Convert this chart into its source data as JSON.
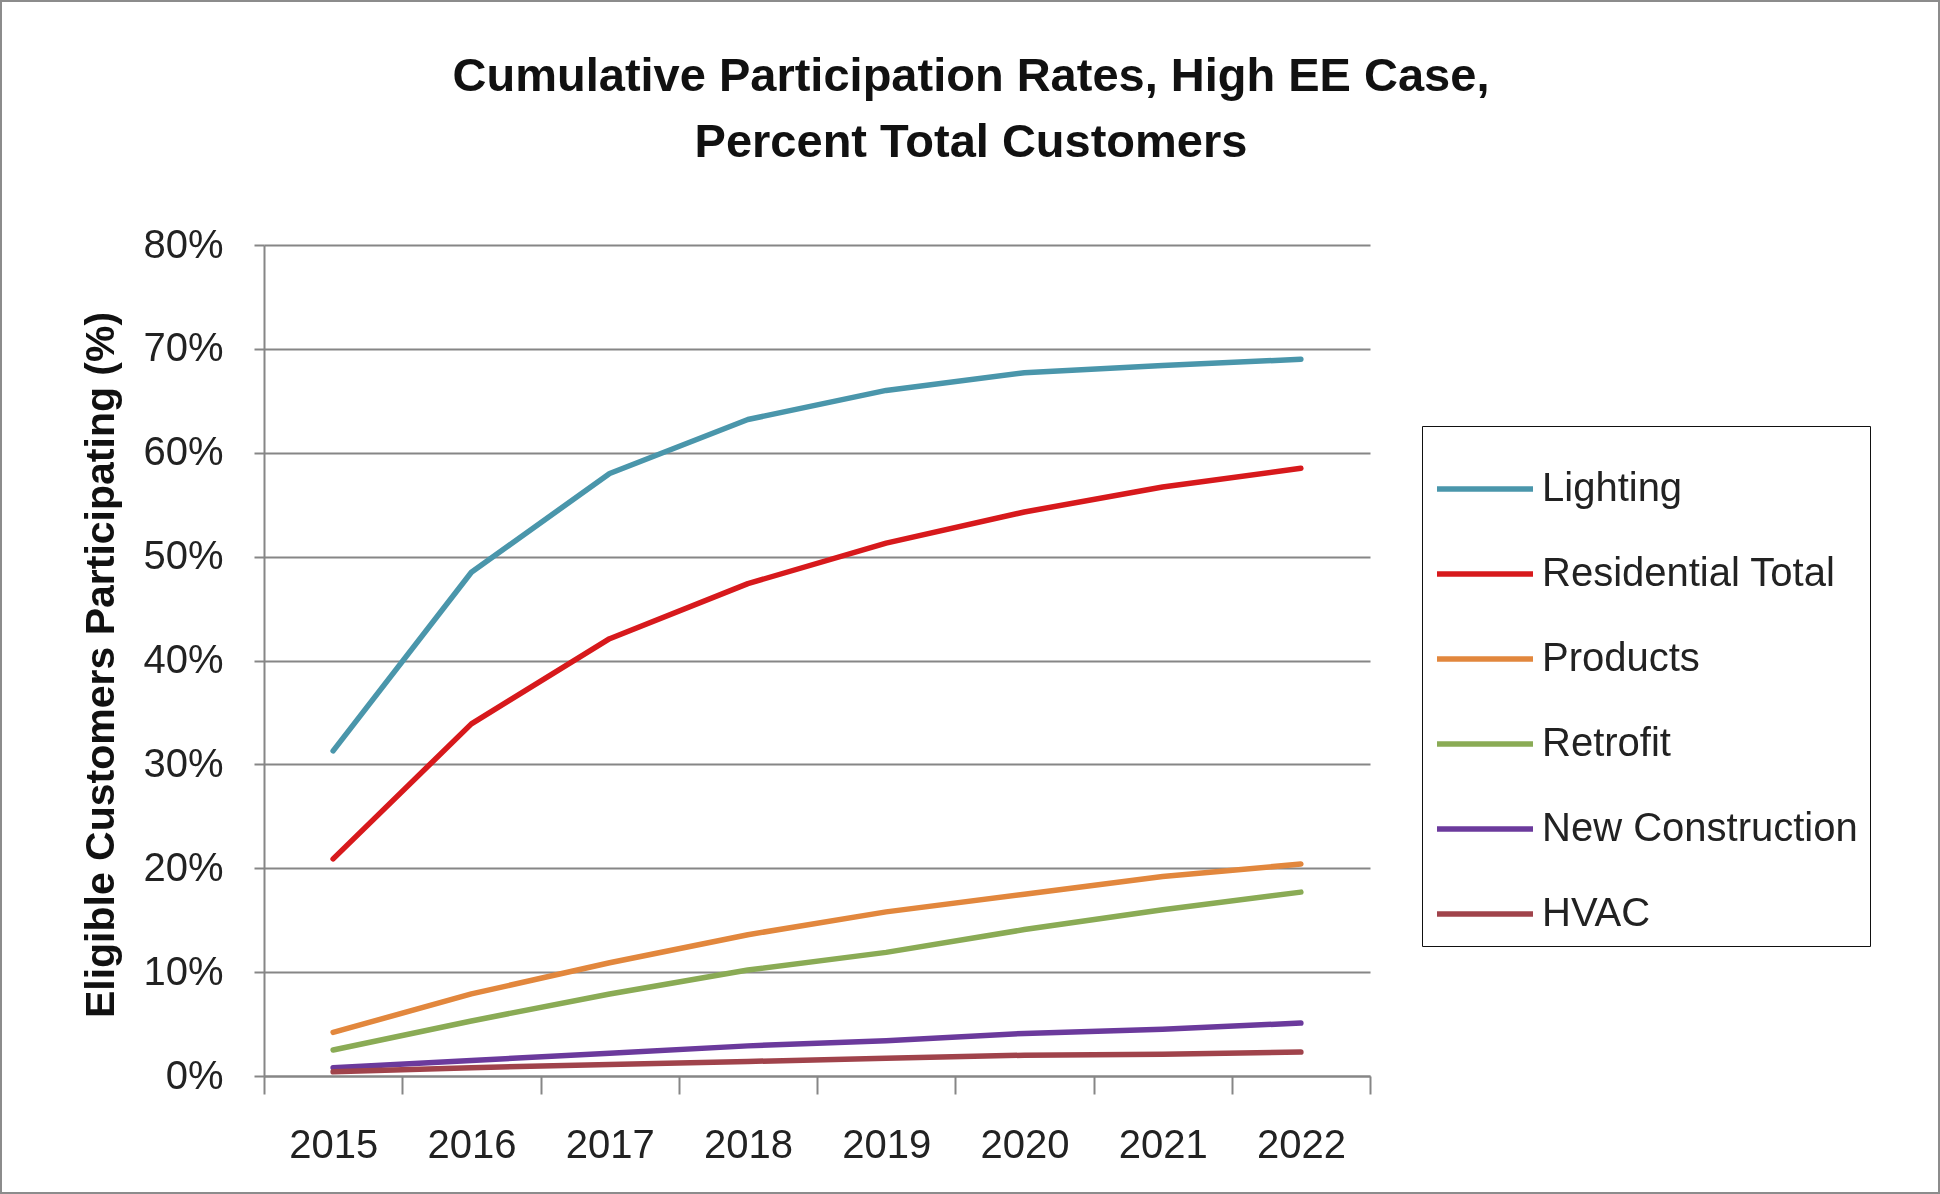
{
  "chart_data": {
    "type": "line",
    "title": "Cumulative Participation Rates, High EE Case,\nPercent Total Customers",
    "ylabel": "Eligible Customers Participating (%)",
    "categories": [
      "2015",
      "2016",
      "2017",
      "2018",
      "2019",
      "2020",
      "2021",
      "2022"
    ],
    "series": [
      {
        "name": "Lighting",
        "color": "#4a96ab",
        "values": [
          31.3,
          48.5,
          58.0,
          63.2,
          66.0,
          67.7,
          68.4,
          69.0
        ]
      },
      {
        "name": "Residential Total",
        "color": "#d7191c",
        "values": [
          20.9,
          33.9,
          42.1,
          47.4,
          51.3,
          54.3,
          56.7,
          58.5
        ]
      },
      {
        "name": "Products",
        "color": "#e2873d",
        "values": [
          4.2,
          7.9,
          10.9,
          13.6,
          15.8,
          17.5,
          19.2,
          20.4
        ]
      },
      {
        "name": "Retrofit",
        "color": "#8aab55",
        "values": [
          2.5,
          5.3,
          7.9,
          10.2,
          11.9,
          14.1,
          16.0,
          17.7
        ]
      },
      {
        "name": "New Construction",
        "color": "#6b3a9c",
        "values": [
          0.8,
          1.5,
          2.2,
          2.9,
          3.4,
          4.1,
          4.5,
          5.1
        ]
      },
      {
        "name": "HVAC",
        "color": "#a0434b",
        "values": [
          0.4,
          0.8,
          1.1,
          1.4,
          1.7,
          2.0,
          2.1,
          2.3
        ]
      }
    ],
    "ylim": [
      0,
      80
    ],
    "yticks": [
      {
        "value": 0,
        "label": "0%"
      },
      {
        "value": 10,
        "label": "10%"
      },
      {
        "value": 20,
        "label": "20%"
      },
      {
        "value": 30,
        "label": "30%"
      },
      {
        "value": 40,
        "label": "40%"
      },
      {
        "value": 50,
        "label": "50%"
      },
      {
        "value": 60,
        "label": "60%"
      },
      {
        "value": 70,
        "label": "70%"
      },
      {
        "value": 80,
        "label": "80%"
      }
    ],
    "grid": "y",
    "legend": "right"
  }
}
